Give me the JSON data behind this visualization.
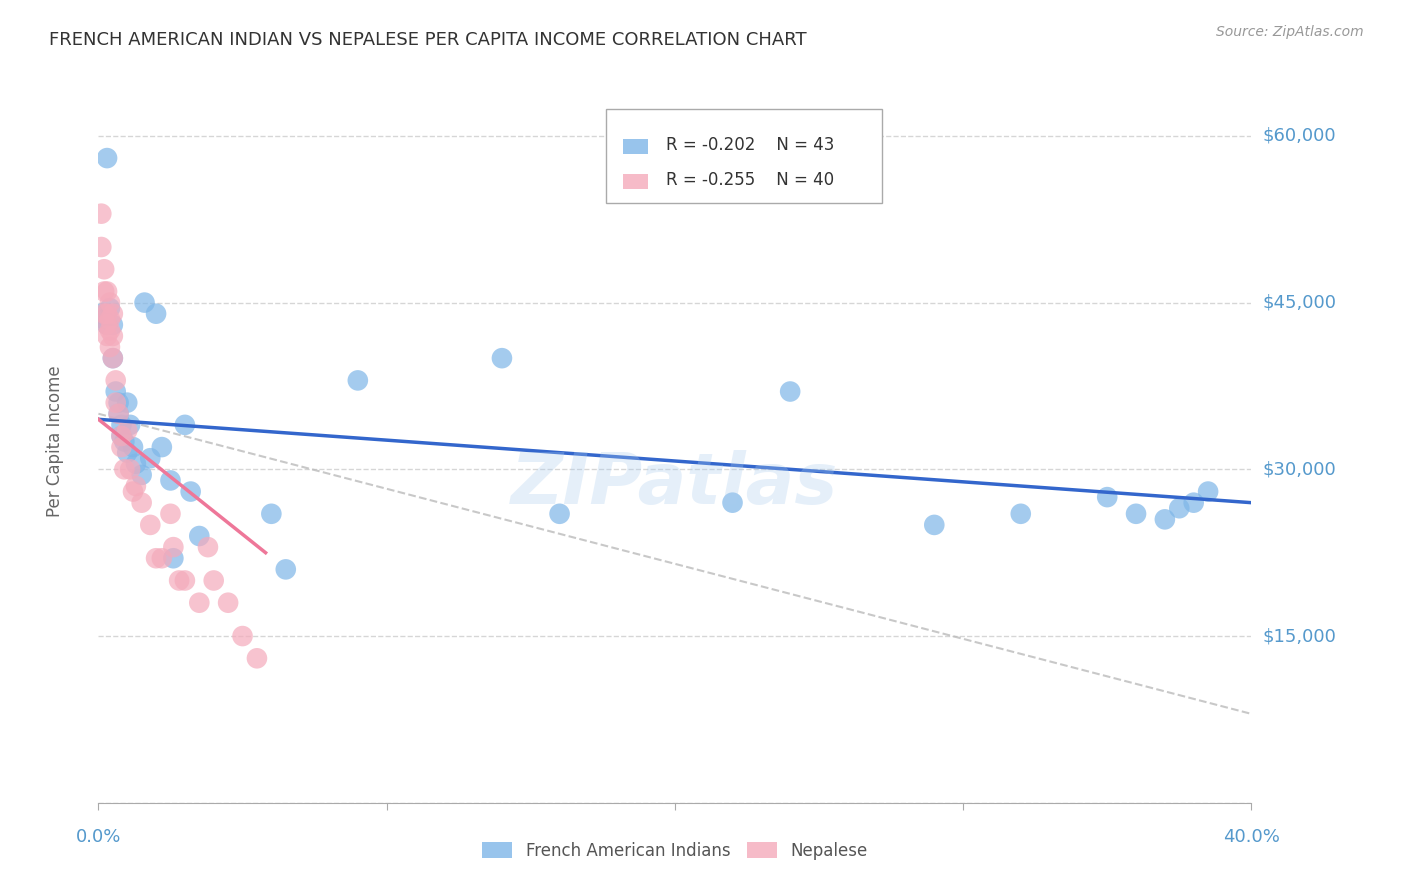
{
  "title": "FRENCH AMERICAN INDIAN VS NEPALESE PER CAPITA INCOME CORRELATION CHART",
  "source": "Source: ZipAtlas.com",
  "ylabel": "Per Capita Income",
  "yticks": [
    0,
    15000,
    30000,
    45000,
    60000
  ],
  "ytick_labels": [
    "",
    "$15,000",
    "$30,000",
    "$45,000",
    "$60,000"
  ],
  "xlim": [
    0.0,
    0.4
  ],
  "ylim": [
    0,
    65000
  ],
  "watermark": "ZIPatlas",
  "legend_r_blue": "R = -0.202",
  "legend_n_blue": "N = 43",
  "legend_r_pink": "R = -0.255",
  "legend_n_pink": "N = 40",
  "legend_labels": [
    "French American Indians",
    "Nepalese"
  ],
  "blue_color": "#7EB6E8",
  "pink_color": "#F4AABB",
  "blue_line_color": "#3366CC",
  "pink_line_color": "#EE7799",
  "blue_scatter_x": [
    0.001,
    0.002,
    0.003,
    0.003,
    0.004,
    0.005,
    0.005,
    0.006,
    0.007,
    0.007,
    0.008,
    0.008,
    0.009,
    0.01,
    0.01,
    0.011,
    0.012,
    0.013,
    0.015,
    0.016,
    0.018,
    0.02,
    0.022,
    0.025,
    0.026,
    0.03,
    0.032,
    0.035,
    0.06,
    0.065,
    0.09,
    0.14,
    0.16,
    0.22,
    0.24,
    0.29,
    0.32,
    0.35,
    0.36,
    0.37,
    0.375,
    0.38,
    0.385
  ],
  "blue_scatter_y": [
    44000,
    43500,
    43000,
    58000,
    44500,
    43000,
    40000,
    37000,
    36000,
    35000,
    34000,
    33000,
    32500,
    31500,
    36000,
    34000,
    32000,
    30500,
    29500,
    45000,
    31000,
    44000,
    32000,
    29000,
    22000,
    34000,
    28000,
    24000,
    26000,
    21000,
    38000,
    40000,
    26000,
    27000,
    37000,
    25000,
    26000,
    27500,
    26000,
    25500,
    26500,
    27000,
    28000
  ],
  "pink_scatter_x": [
    0.001,
    0.001,
    0.002,
    0.002,
    0.002,
    0.003,
    0.003,
    0.003,
    0.003,
    0.004,
    0.004,
    0.004,
    0.004,
    0.005,
    0.005,
    0.005,
    0.006,
    0.006,
    0.007,
    0.008,
    0.008,
    0.009,
    0.01,
    0.011,
    0.012,
    0.013,
    0.015,
    0.018,
    0.02,
    0.022,
    0.025,
    0.026,
    0.028,
    0.03,
    0.035,
    0.038,
    0.04,
    0.045,
    0.05,
    0.055
  ],
  "pink_scatter_y": [
    53000,
    50000,
    48000,
    46000,
    44000,
    46000,
    44000,
    43000,
    42000,
    45000,
    43500,
    42500,
    41000,
    44000,
    42000,
    40000,
    38000,
    36000,
    35000,
    33000,
    32000,
    30000,
    33500,
    30000,
    28000,
    28500,
    27000,
    25000,
    22000,
    22000,
    26000,
    23000,
    20000,
    20000,
    18000,
    23000,
    20000,
    18000,
    15000,
    13000
  ],
  "blue_trend_x": [
    0.0,
    0.4
  ],
  "blue_trend_y": [
    34500,
    27000
  ],
  "pink_trend_x": [
    0.0,
    0.058
  ],
  "pink_trend_y": [
    34500,
    22500
  ],
  "gray_trend_x": [
    0.0,
    0.4
  ],
  "gray_trend_y": [
    35000,
    8000
  ],
  "background_color": "#FFFFFF",
  "grid_color": "#CCCCCC",
  "title_color": "#333333",
  "tick_color": "#5599CC"
}
